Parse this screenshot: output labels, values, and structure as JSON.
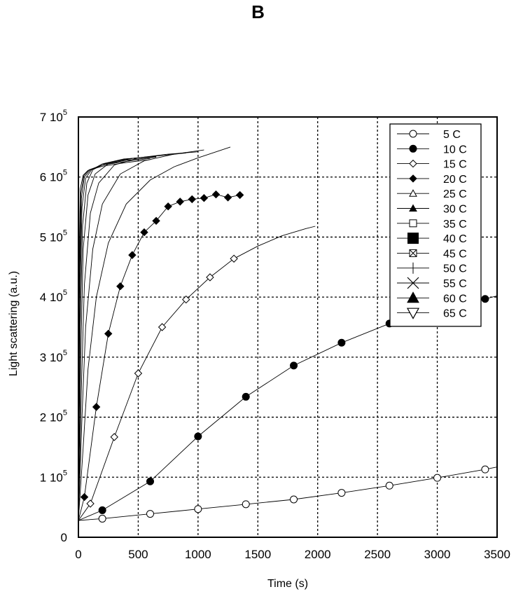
{
  "panel_label": "B",
  "chart_data": {
    "type": "line",
    "xlabel": "Time (s)",
    "ylabel": "Light scattering (a.u.)",
    "xlim": [
      0,
      3500
    ],
    "ylim": [
      0,
      700000
    ],
    "xticks": [
      0,
      500,
      1000,
      1500,
      2000,
      2500,
      3000,
      3500
    ],
    "yticks": [
      {
        "value": 0,
        "mantissa": "0",
        "base": "",
        "exp": ""
      },
      {
        "value": 100000,
        "mantissa": "1",
        "base": "10",
        "exp": "5"
      },
      {
        "value": 200000,
        "mantissa": "2",
        "base": "10",
        "exp": "5"
      },
      {
        "value": 300000,
        "mantissa": "3",
        "base": "10",
        "exp": "5"
      },
      {
        "value": 400000,
        "mantissa": "4",
        "base": "10",
        "exp": "5"
      },
      {
        "value": 500000,
        "mantissa": "5",
        "base": "10",
        "exp": "5"
      },
      {
        "value": 600000,
        "mantissa": "6",
        "base": "10",
        "exp": "5"
      },
      {
        "value": 700000,
        "mantissa": "7",
        "base": "10",
        "exp": "5"
      }
    ],
    "grid": true,
    "legend_position": "top-right",
    "series": [
      {
        "name": "5 C",
        "marker": "circle-open",
        "x": [
          0,
          200,
          600,
          1000,
          1400,
          1800,
          2200,
          2600,
          3000,
          3400,
          3500
        ],
        "y": [
          28000,
          31000,
          39000,
          47000,
          55000,
          63000,
          74000,
          86000,
          99000,
          113000,
          117000
        ],
        "marker_x": [
          200,
          600,
          1000,
          1400,
          1800,
          2200,
          2600,
          3000,
          3400
        ]
      },
      {
        "name": "10 C",
        "marker": "circle-filled",
        "x": [
          0,
          200,
          600,
          1000,
          1400,
          1800,
          2200,
          2600,
          3000,
          3400,
          3500
        ],
        "y": [
          28000,
          45000,
          93000,
          168000,
          234000,
          286000,
          324000,
          356000,
          380000,
          397000,
          402000
        ],
        "marker_x": [
          200,
          600,
          1000,
          1400,
          1800,
          2200,
          2600,
          3400
        ]
      },
      {
        "name": "15 C",
        "marker": "diamond-open",
        "x": [
          0,
          100,
          300,
          500,
          700,
          900,
          1100,
          1300,
          1500,
          1700,
          1900,
          1980
        ],
        "y": [
          28000,
          56000,
          167000,
          273000,
          350000,
          396000,
          433000,
          464000,
          485000,
          502000,
          514000,
          518000
        ],
        "marker_x": [
          100,
          300,
          500,
          700,
          900,
          1100,
          1300
        ]
      },
      {
        "name": "20 C",
        "marker": "diamond-filled",
        "x": [
          0,
          50,
          150,
          250,
          350,
          450,
          550,
          650,
          750,
          850,
          950,
          1050,
          1150,
          1250,
          1350
        ],
        "y": [
          28000,
          67000,
          217000,
          339000,
          418000,
          470000,
          508000,
          527000,
          551000,
          559000,
          563000,
          565000,
          571000,
          566000,
          570000
        ],
        "marker_x": [
          50,
          150,
          250,
          350,
          450,
          550,
          650,
          750,
          850,
          950,
          1050,
          1150,
          1250,
          1350
        ]
      },
      {
        "name": "25 C",
        "marker": "triangle-open",
        "x": [
          0,
          40,
          80,
          150,
          250,
          400,
          600,
          800,
          1000,
          1270
        ],
        "y": [
          28000,
          150000,
          280000,
          400000,
          490000,
          555000,
          595000,
          617000,
          632000,
          650000
        ]
      },
      {
        "name": "30 C",
        "marker": "triangle-filled",
        "x": [
          0,
          30,
          60,
          120,
          200,
          350,
          550,
          800,
          1050
        ],
        "y": [
          28000,
          200000,
          350000,
          480000,
          555000,
          605000,
          627000,
          638000,
          645000
        ]
      },
      {
        "name": "35 C",
        "marker": "square-open",
        "x": [
          0,
          25,
          50,
          100,
          170,
          300,
          500,
          750,
          1000
        ],
        "y": [
          28000,
          250000,
          420000,
          540000,
          590000,
          620000,
          632000,
          638000,
          642000
        ]
      },
      {
        "name": "40 C",
        "marker": "square-filled",
        "x": [
          0,
          20,
          40,
          80,
          140,
          250,
          450,
          700,
          900
        ],
        "y": [
          28000,
          300000,
          480000,
          570000,
          605000,
          622000,
          631000,
          636000,
          640000
        ]
      },
      {
        "name": "45 C",
        "marker": "square-x",
        "x": [
          0,
          15,
          35,
          70,
          120,
          220,
          400,
          650
        ],
        "y": [
          28000,
          350000,
          520000,
          590000,
          612000,
          622000,
          630000,
          635000
        ]
      },
      {
        "name": "50 C",
        "marker": "plus",
        "x": [
          0,
          12,
          30,
          60,
          110,
          200,
          380,
          650
        ],
        "y": [
          28000,
          390000,
          550000,
          598000,
          612000,
          622000,
          630000,
          634000
        ]
      },
      {
        "name": "55 C",
        "marker": "x",
        "x": [
          0,
          10,
          25,
          50,
          100,
          200,
          400,
          650
        ],
        "y": [
          28000,
          420000,
          565000,
          600000,
          612000,
          620000,
          628000,
          633000
        ]
      },
      {
        "name": "60 C",
        "marker": "triangle-filled-large",
        "x": [
          0,
          8,
          20,
          45,
          90,
          200,
          400,
          600
        ],
        "y": [
          28000,
          440000,
          572000,
          602000,
          612000,
          620000,
          626000,
          631000
        ]
      },
      {
        "name": "65 C",
        "marker": "triangle-down-open",
        "x": [
          0,
          6,
          15,
          40,
          80,
          200,
          400,
          600
        ],
        "y": [
          28000,
          460000,
          580000,
          603000,
          611000,
          618000,
          624000,
          629000
        ]
      }
    ]
  }
}
